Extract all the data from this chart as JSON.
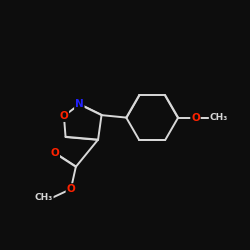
{
  "background_color": "#0d0d0d",
  "bond_color": "#d8d8d8",
  "atom_colors": {
    "O": "#ff2200",
    "N": "#2222ff",
    "C": "#d8d8d8"
  },
  "figsize": [
    2.5,
    2.5
  ],
  "dpi": 100
}
